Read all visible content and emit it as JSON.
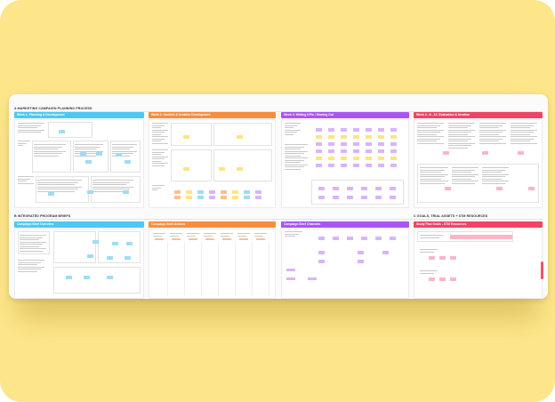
{
  "sections": {
    "a": {
      "title": "A MARKETING CAMPAIGN PLANNING PROCESS"
    },
    "b": {
      "title": "B INTEGRATED PROGRAM BRIEFS"
    },
    "c": {
      "title": "C GOALS, TRIAL ASSETS + STM RESOURCES"
    }
  },
  "columns_top": [
    {
      "label": "Week 1: Planning & Development",
      "color": "#4cc9f0"
    },
    {
      "label": "Week 2: Content & Creative Development",
      "color": "#fb8c3b"
    },
    {
      "label": "Week 3: Writing KPIs / Sharing Out",
      "color": "#a855f7"
    },
    {
      "label": "Week 4 - 8 - 12: Evaluation & Iteration",
      "color": "#ef4466"
    }
  ],
  "columns_bottom": [
    {
      "label": "Campaign Brief Overview",
      "color": "#4cc9f0"
    },
    {
      "label": "Campaign Brief Actions",
      "color": "#fb8c3b"
    },
    {
      "label": "Campaign Brief Channels",
      "color": "#a855f7"
    },
    {
      "label": "Study Plan Goals - STM Resources",
      "color": "#ef4466"
    }
  ],
  "colors": {
    "background": "#fde68a",
    "board": "#fbfbfb",
    "sticky_blue": "#9fdcf5",
    "sticky_yellow": "#fbe680",
    "sticky_purple": "#d8b4fe",
    "sticky_pink": "#fbb6c6",
    "sticky_orange": "#fdc08c",
    "scroll_accent": "#f0506e"
  }
}
